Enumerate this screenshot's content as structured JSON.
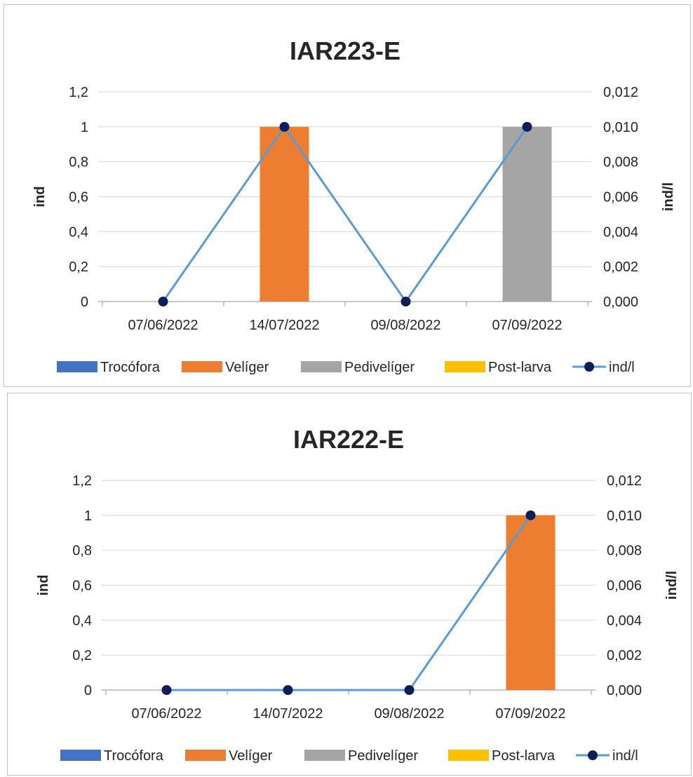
{
  "chart_data": [
    {
      "type": "bar",
      "title": "IAR223-E",
      "categories": [
        "07/06/2022",
        "14/07/2022",
        "09/08/2022",
        "07/09/2022"
      ],
      "ylabel": "ind",
      "y2label": "ind/l",
      "ylim": [
        0,
        1.2
      ],
      "y2lim": [
        0,
        0.012
      ],
      "y_ticks": [
        "0",
        "0,2",
        "0,4",
        "0,6",
        "0,8",
        "1",
        "1,2"
      ],
      "y2_ticks": [
        "0,000",
        "0,002",
        "0,004",
        "0,006",
        "0,008",
        "0,010",
        "0,012"
      ],
      "grid": true,
      "legend_position": "bottom",
      "series": [
        {
          "name": "Trocófora",
          "kind": "bar",
          "color": "#4472c4",
          "values": [
            0,
            0,
            0,
            0
          ]
        },
        {
          "name": "Velíger",
          "kind": "bar",
          "color": "#ed7d31",
          "values": [
            0,
            1,
            0,
            0
          ]
        },
        {
          "name": "Pedivelíger",
          "kind": "bar",
          "color": "#a5a5a5",
          "values": [
            0,
            0,
            0,
            1
          ]
        },
        {
          "name": "Post-larva",
          "kind": "bar",
          "color": "#ffc000",
          "values": [
            0,
            0,
            0,
            0
          ]
        },
        {
          "name": "ind/l",
          "kind": "line",
          "axis": "secondary",
          "color": "#5b9bd5",
          "marker_color": "#0e1e5b",
          "values": [
            0,
            0.01,
            0,
            0.01
          ]
        }
      ]
    },
    {
      "type": "bar",
      "title": "IAR222-E",
      "categories": [
        "07/06/2022",
        "14/07/2022",
        "09/08/2022",
        "07/09/2022"
      ],
      "ylabel": "ind",
      "y2label": "ind/l",
      "ylim": [
        0,
        1.2
      ],
      "y2lim": [
        0,
        0.012
      ],
      "y_ticks": [
        "0",
        "0,2",
        "0,4",
        "0,6",
        "0,8",
        "1",
        "1,2"
      ],
      "y2_ticks": [
        "0,000",
        "0,002",
        "0,004",
        "0,006",
        "0,008",
        "0,010",
        "0,012"
      ],
      "grid": true,
      "legend_position": "bottom",
      "series": [
        {
          "name": "Trocófora",
          "kind": "bar",
          "color": "#4472c4",
          "values": [
            0,
            0,
            0,
            0
          ]
        },
        {
          "name": "Velíger",
          "kind": "bar",
          "color": "#ed7d31",
          "values": [
            0,
            0,
            0,
            1
          ]
        },
        {
          "name": "Pedivelíger",
          "kind": "bar",
          "color": "#a5a5a5",
          "values": [
            0,
            0,
            0,
            0
          ]
        },
        {
          "name": "Post-larva",
          "kind": "bar",
          "color": "#ffc000",
          "values": [
            0,
            0,
            0,
            0
          ]
        },
        {
          "name": "ind/l",
          "kind": "line",
          "axis": "secondary",
          "color": "#5b9bd5",
          "marker_color": "#0e1e5b",
          "values": [
            0,
            0,
            0,
            0.01
          ]
        }
      ]
    }
  ]
}
